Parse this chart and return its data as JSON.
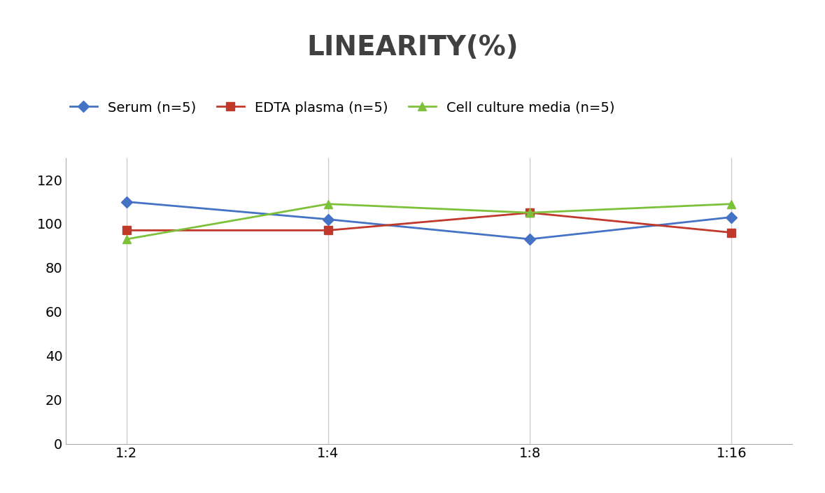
{
  "title": "LINEARITY(%)",
  "title_fontsize": 28,
  "title_fontweight": "bold",
  "title_color": "#404040",
  "x_labels": [
    "1:2",
    "1:4",
    "1:8",
    "1:16"
  ],
  "x_positions": [
    0,
    1,
    2,
    3
  ],
  "series": [
    {
      "label": "Serum (n=5)",
      "values": [
        110,
        102,
        93,
        103
      ],
      "color": "#4472C4",
      "marker": "D",
      "markersize": 8,
      "linewidth": 2
    },
    {
      "label": "EDTA plasma (n=5)",
      "values": [
        97,
        97,
        105,
        96
      ],
      "color": "#C0392B",
      "marker": "s",
      "markersize": 8,
      "linewidth": 2
    },
    {
      "label": "Cell culture media (n=5)",
      "values": [
        93,
        109,
        105,
        109
      ],
      "color": "#7DC13A",
      "marker": "^",
      "markersize": 8,
      "linewidth": 2
    }
  ],
  "ylim": [
    0,
    130
  ],
  "yticks": [
    0,
    20,
    40,
    60,
    80,
    100,
    120
  ],
  "grid_color": "#CCCCCC",
  "background_color": "#FFFFFF",
  "legend_fontsize": 14,
  "tick_fontsize": 14
}
